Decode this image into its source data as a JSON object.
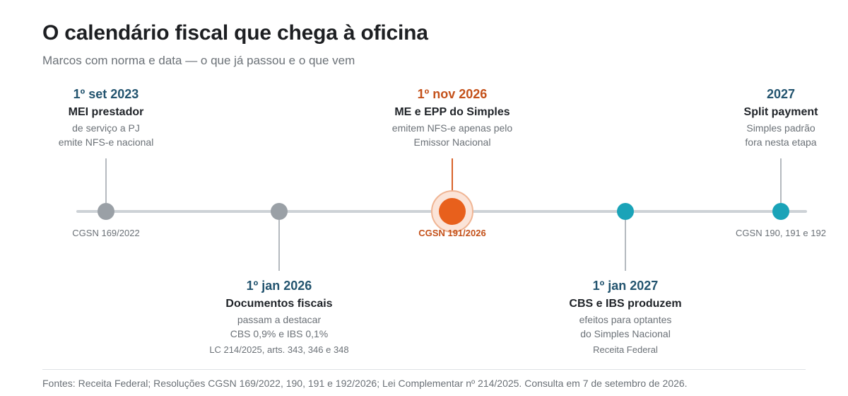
{
  "header": {
    "title": "O calendário fiscal que chega à oficina",
    "subtitle": "Marcos com norma e data — o que já passou e o que vem"
  },
  "milestones": [
    {
      "date": "1º set 2023",
      "headline": "MEI prestador",
      "description": [
        "de serviço a PJ",
        "emite NFS-e nacional"
      ],
      "norm": "CGSN 169/2022",
      "status": "past",
      "color": "#9aa0a6"
    },
    {
      "date": "1º jan 2026",
      "headline": "Documentos fiscais",
      "description": [
        "passam a destacar",
        "CBS 0,9% e IBS 0,1%"
      ],
      "norm": "LC 214/2025, arts. 343, 346 e 348",
      "status": "past",
      "color": "#9aa0a6"
    },
    {
      "date": "1º nov 2026",
      "headline": "ME e EPP do Simples",
      "description": [
        "emitem NFS-e apenas pelo",
        "Emissor Nacional"
      ],
      "norm": "CGSN 191/2026",
      "status": "current",
      "color": "#e8601c"
    },
    {
      "date": "1º jan 2027",
      "headline": "CBS e IBS produzem",
      "description": [
        "efeitos para optantes",
        "do Simples Nacional"
      ],
      "norm": "Receita Federal",
      "status": "future",
      "color": "#1aa3b8"
    },
    {
      "date": "2027",
      "headline": "Split payment",
      "description": [
        "Simples padrão",
        "fora nesta etapa"
      ],
      "norm": "CGSN 190, 191 e 192",
      "status": "future",
      "color": "#1aa3b8"
    }
  ],
  "colors": {
    "axis": "#cdd2d6",
    "past": "#9aa0a6",
    "current": "#e8601c",
    "current_text": "#c4511a",
    "future": "#1aa3b8",
    "date_text": "#23546f"
  },
  "footer": {
    "sources": "Fontes: Receita Federal; Resoluções CGSN 169/2022, 190, 191 e 192/2026; Lei Complementar nº 214/2025. Consulta em 7 de setembro de 2026."
  }
}
